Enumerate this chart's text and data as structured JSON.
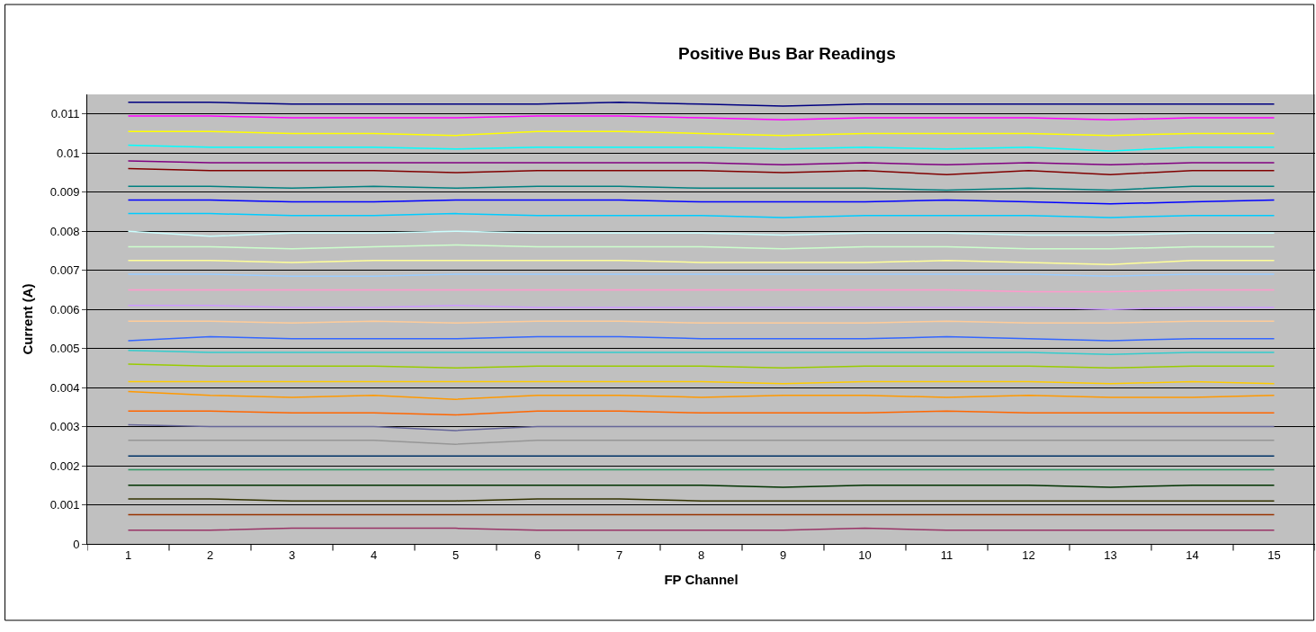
{
  "chart_data": {
    "type": "line",
    "title": "Positive Bus Bar Readings",
    "xlabel": "FP Channel",
    "ylabel": "Current (A)",
    "categories": [
      "1",
      "2",
      "3",
      "4",
      "5",
      "6",
      "7",
      "8",
      "9",
      "10",
      "11",
      "12",
      "13",
      "14",
      "15"
    ],
    "ylim": [
      0,
      0.0115
    ],
    "yticks": [
      0,
      0.001,
      0.002,
      0.003,
      0.004,
      0.005,
      0.006,
      0.007,
      0.008,
      0.009,
      0.01,
      0.011
    ],
    "grid": "y",
    "line_style": "solid",
    "series": [
      {
        "color": "#000080",
        "values": [
          0.0113,
          0.0113,
          0.01125,
          0.01125,
          0.01125,
          0.01125,
          0.0113,
          0.01125,
          0.0112,
          0.01125,
          0.01125,
          0.01125,
          0.01125,
          0.01125,
          0.01125
        ]
      },
      {
        "color": "#ff00ff",
        "values": [
          0.01095,
          0.01095,
          0.0109,
          0.0109,
          0.0109,
          0.01095,
          0.01095,
          0.0109,
          0.01085,
          0.0109,
          0.0109,
          0.0109,
          0.01085,
          0.0109,
          0.0109
        ]
      },
      {
        "color": "#ffff00",
        "values": [
          0.01055,
          0.01055,
          0.0105,
          0.0105,
          0.01045,
          0.01055,
          0.01055,
          0.0105,
          0.01045,
          0.0105,
          0.0105,
          0.0105,
          0.01045,
          0.0105,
          0.0105
        ]
      },
      {
        "color": "#00ffff",
        "values": [
          0.0102,
          0.01015,
          0.01015,
          0.01015,
          0.0101,
          0.01015,
          0.01015,
          0.01015,
          0.0101,
          0.01015,
          0.0101,
          0.01015,
          0.01005,
          0.01015,
          0.01015
        ]
      },
      {
        "color": "#800080",
        "values": [
          0.0098,
          0.00975,
          0.00975,
          0.00975,
          0.00975,
          0.00975,
          0.00975,
          0.00975,
          0.0097,
          0.00975,
          0.0097,
          0.00975,
          0.0097,
          0.00975,
          0.00975
        ]
      },
      {
        "color": "#800000",
        "values": [
          0.0096,
          0.00955,
          0.00955,
          0.00955,
          0.0095,
          0.00955,
          0.00955,
          0.00955,
          0.0095,
          0.00955,
          0.00945,
          0.00955,
          0.00945,
          0.00955,
          0.00955
        ]
      },
      {
        "color": "#008080",
        "values": [
          0.00915,
          0.00915,
          0.0091,
          0.00915,
          0.0091,
          0.00915,
          0.00915,
          0.0091,
          0.0091,
          0.0091,
          0.00905,
          0.0091,
          0.00905,
          0.00915,
          0.00915
        ]
      },
      {
        "color": "#0000ff",
        "values": [
          0.0088,
          0.0088,
          0.00875,
          0.00875,
          0.0088,
          0.0088,
          0.0088,
          0.00875,
          0.00875,
          0.00875,
          0.0088,
          0.00875,
          0.0087,
          0.00875,
          0.0088
        ]
      },
      {
        "color": "#00ccff",
        "values": [
          0.00845,
          0.00845,
          0.0084,
          0.0084,
          0.00845,
          0.0084,
          0.0084,
          0.0084,
          0.00835,
          0.0084,
          0.0084,
          0.0084,
          0.00835,
          0.0084,
          0.0084
        ]
      },
      {
        "color": "#ccffff",
        "values": [
          0.008,
          0.00787,
          0.00795,
          0.00795,
          0.008,
          0.00795,
          0.00795,
          0.00795,
          0.0079,
          0.00795,
          0.00795,
          0.0079,
          0.0079,
          0.00795,
          0.00795
        ]
      },
      {
        "color": "#ccffcc",
        "values": [
          0.0076,
          0.0076,
          0.00755,
          0.0076,
          0.00765,
          0.0076,
          0.0076,
          0.0076,
          0.00755,
          0.0076,
          0.0076,
          0.00755,
          0.00755,
          0.0076,
          0.0076
        ]
      },
      {
        "color": "#ffff99",
        "values": [
          0.00725,
          0.00725,
          0.0072,
          0.00725,
          0.00725,
          0.00725,
          0.00725,
          0.0072,
          0.0072,
          0.0072,
          0.00725,
          0.0072,
          0.00715,
          0.00725,
          0.00725
        ]
      },
      {
        "color": "#99ccff",
        "values": [
          0.0069,
          0.0069,
          0.00685,
          0.00685,
          0.0069,
          0.0069,
          0.0069,
          0.0069,
          0.0069,
          0.0069,
          0.0069,
          0.0069,
          0.00685,
          0.0069,
          0.0069
        ]
      },
      {
        "color": "#ff99cc",
        "values": [
          0.0065,
          0.0065,
          0.0065,
          0.0065,
          0.0065,
          0.0065,
          0.0065,
          0.0065,
          0.0065,
          0.0065,
          0.0065,
          0.00645,
          0.00645,
          0.0065,
          0.0065
        ]
      },
      {
        "color": "#cc99ff",
        "values": [
          0.0061,
          0.0061,
          0.00605,
          0.00605,
          0.0061,
          0.00605,
          0.00605,
          0.00605,
          0.00605,
          0.00605,
          0.00605,
          0.00605,
          0.006,
          0.00605,
          0.00605
        ]
      },
      {
        "color": "#ffcc99",
        "values": [
          0.0057,
          0.0057,
          0.00565,
          0.0057,
          0.00565,
          0.0057,
          0.0057,
          0.00565,
          0.00565,
          0.00565,
          0.0057,
          0.00565,
          0.00565,
          0.0057,
          0.0057
        ]
      },
      {
        "color": "#3366ff",
        "values": [
          0.0052,
          0.0053,
          0.00525,
          0.00525,
          0.00525,
          0.0053,
          0.0053,
          0.00525,
          0.00525,
          0.00525,
          0.0053,
          0.00525,
          0.0052,
          0.00525,
          0.00525
        ]
      },
      {
        "color": "#33cccc",
        "values": [
          0.00495,
          0.0049,
          0.0049,
          0.0049,
          0.0049,
          0.0049,
          0.0049,
          0.0049,
          0.0049,
          0.0049,
          0.0049,
          0.0049,
          0.00485,
          0.0049,
          0.0049
        ]
      },
      {
        "color": "#99cc00",
        "values": [
          0.0046,
          0.00455,
          0.00455,
          0.00455,
          0.0045,
          0.00455,
          0.00455,
          0.00455,
          0.0045,
          0.00455,
          0.00455,
          0.00455,
          0.0045,
          0.00455,
          0.00455
        ]
      },
      {
        "color": "#ffcc00",
        "values": [
          0.00415,
          0.00415,
          0.00415,
          0.00415,
          0.00415,
          0.00415,
          0.00415,
          0.00415,
          0.0041,
          0.00415,
          0.00415,
          0.00415,
          0.0041,
          0.00415,
          0.0041
        ]
      },
      {
        "color": "#ff9900",
        "values": [
          0.0039,
          0.0038,
          0.00375,
          0.0038,
          0.0037,
          0.0038,
          0.0038,
          0.00375,
          0.0038,
          0.0038,
          0.00375,
          0.0038,
          0.00375,
          0.00375,
          0.0038
        ]
      },
      {
        "color": "#ff6600",
        "values": [
          0.0034,
          0.0034,
          0.00335,
          0.00335,
          0.0033,
          0.0034,
          0.0034,
          0.00335,
          0.00335,
          0.00335,
          0.0034,
          0.00335,
          0.00335,
          0.00335,
          0.00335
        ]
      },
      {
        "color": "#666699",
        "values": [
          0.00305,
          0.003,
          0.003,
          0.003,
          0.0029,
          0.003,
          0.003,
          0.003,
          0.003,
          0.003,
          0.003,
          0.003,
          0.003,
          0.003,
          0.003
        ]
      },
      {
        "color": "#969696",
        "values": [
          0.00265,
          0.00265,
          0.00265,
          0.00265,
          0.00255,
          0.00265,
          0.00265,
          0.00265,
          0.00265,
          0.00265,
          0.00265,
          0.00265,
          0.00265,
          0.00265,
          0.00265
        ]
      },
      {
        "color": "#003366",
        "values": [
          0.00225,
          0.00225,
          0.00225,
          0.00225,
          0.00225,
          0.00225,
          0.00225,
          0.00225,
          0.00225,
          0.00225,
          0.00225,
          0.00225,
          0.00225,
          0.00225,
          0.00225
        ]
      },
      {
        "color": "#339966",
        "values": [
          0.0019,
          0.0019,
          0.0019,
          0.0019,
          0.0019,
          0.0019,
          0.0019,
          0.0019,
          0.0019,
          0.0019,
          0.0019,
          0.0019,
          0.0019,
          0.0019,
          0.0019
        ]
      },
      {
        "color": "#003300",
        "values": [
          0.0015,
          0.0015,
          0.0015,
          0.0015,
          0.0015,
          0.0015,
          0.0015,
          0.0015,
          0.00145,
          0.0015,
          0.0015,
          0.0015,
          0.00145,
          0.0015,
          0.0015
        ]
      },
      {
        "color": "#333300",
        "values": [
          0.00115,
          0.00115,
          0.0011,
          0.0011,
          0.0011,
          0.00115,
          0.00115,
          0.0011,
          0.0011,
          0.0011,
          0.0011,
          0.0011,
          0.0011,
          0.0011,
          0.0011
        ]
      },
      {
        "color": "#993300",
        "values": [
          0.00075,
          0.00075,
          0.00075,
          0.00075,
          0.00075,
          0.00075,
          0.00075,
          0.00075,
          0.00075,
          0.00075,
          0.00075,
          0.00075,
          0.00075,
          0.00075,
          0.00075
        ]
      },
      {
        "color": "#993366",
        "values": [
          0.00035,
          0.00035,
          0.0004,
          0.0004,
          0.0004,
          0.00035,
          0.00035,
          0.00035,
          0.00035,
          0.0004,
          0.00035,
          0.00035,
          0.00035,
          0.00035,
          0.00035
        ]
      }
    ]
  }
}
